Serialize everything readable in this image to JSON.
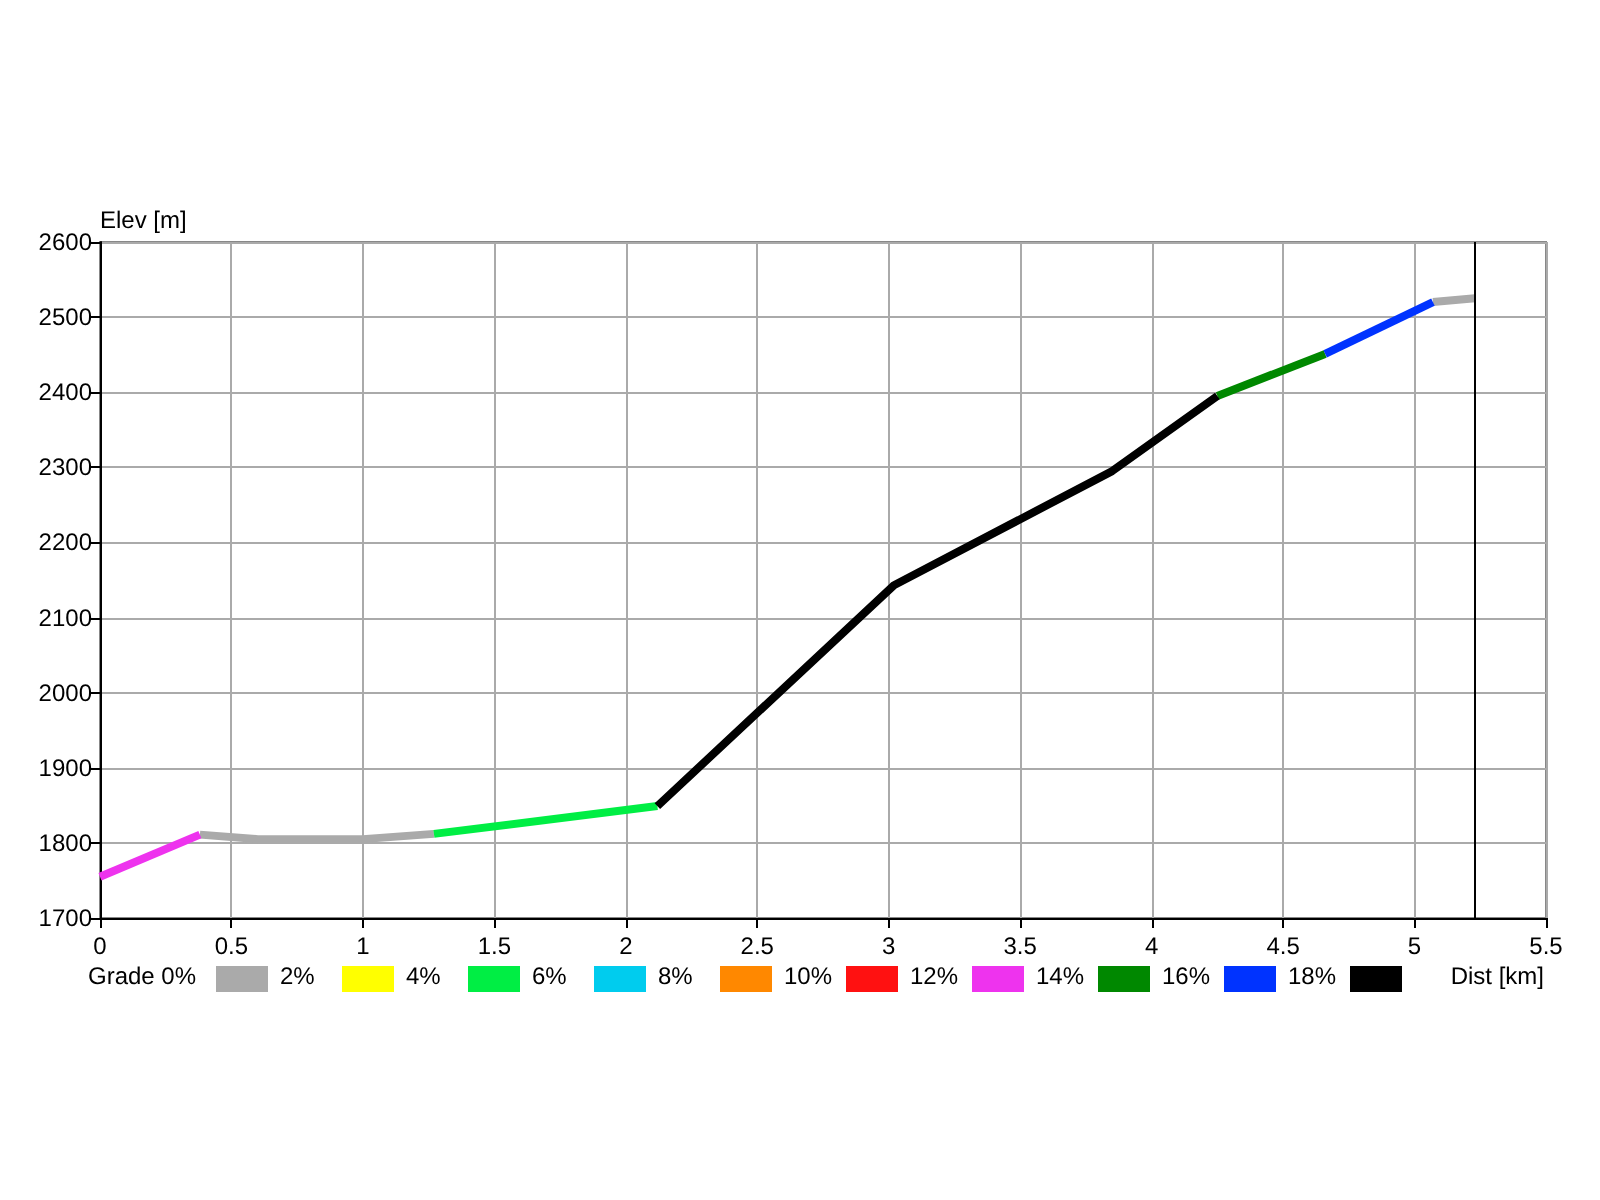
{
  "chart_data": {
    "type": "line",
    "ylabel": "Elev [m]",
    "xlabel": "Dist [km]",
    "legend_title": "Grade 0%",
    "xlim": [
      0,
      5.5
    ],
    "xticks": [
      0,
      0.5,
      1,
      1.5,
      2,
      2.5,
      3,
      3.5,
      4,
      4.5,
      5,
      5.5
    ],
    "ylim": [
      1700,
      2600
    ],
    "yticks": [
      1700,
      1800,
      1900,
      2000,
      2100,
      2200,
      2300,
      2400,
      2500,
      2600
    ],
    "grid": true,
    "legend": "bottom",
    "marker": "none",
    "line_style": "solid",
    "ref_lines": [
      {
        "axis": "x",
        "value": 5.23,
        "color": "#000000"
      }
    ],
    "series": [
      {
        "name": "2%",
        "color": "#aaaaaa",
        "x": [
          0.38,
          0.6,
          1.0,
          1.27,
          3,
          5.07,
          5.23
        ],
        "values": [
          1811,
          1805,
          1805,
          1812,
          null,
          2520,
          2525
        ]
      },
      {
        "name": "4%",
        "color": "#ffff00"
      },
      {
        "name": "6%",
        "color": "#00ee44",
        "x": [
          1.27,
          2.12
        ],
        "values": [
          1812,
          1849
        ]
      },
      {
        "name": "8%",
        "color": "#00ccee"
      },
      {
        "name": "10%",
        "color": "#ff8800"
      },
      {
        "name": "12%",
        "color": "#ff1111"
      },
      {
        "name": "14%",
        "color": "#ee33ee",
        "x": [
          0,
          0.38
        ],
        "values": [
          1755,
          1811
        ]
      },
      {
        "name": "16%",
        "color": "#008800",
        "x": [
          4.25,
          4.66
        ],
        "values": [
          2395,
          2451
        ]
      },
      {
        "name": "18%",
        "color": "#0033ff",
        "x": [
          4.66,
          5.07
        ],
        "values": [
          2451,
          2520
        ]
      },
      {
        "name": null,
        "color": "#000000",
        "x": [
          2.12,
          3.02,
          3.85,
          4.25
        ],
        "values": [
          1849,
          2143,
          2295,
          2395
        ]
      }
    ]
  }
}
